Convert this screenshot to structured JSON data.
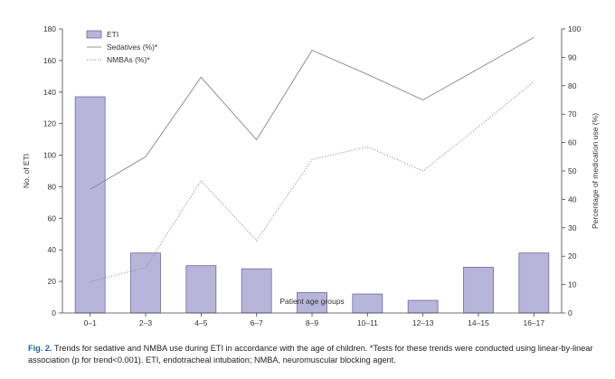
{
  "chart_data": {
    "type": "bar",
    "categories": [
      "0–1",
      "2–3",
      "4–5",
      "6–7",
      "8–9",
      "10–11",
      "12–13",
      "14–15",
      "16–17"
    ],
    "xlabel": "Patient age groups",
    "ylabel": "No. of ETI",
    "y2label": "Percentage of medication use (%)",
    "ylim": [
      0,
      180
    ],
    "y2lim": [
      0,
      100
    ],
    "yticks": [
      "0",
      "20",
      "40",
      "60",
      "80",
      "100",
      "120",
      "140",
      "160",
      "180"
    ],
    "y2ticks": [
      "0",
      "10",
      "20",
      "30",
      "40",
      "50",
      "60",
      "70",
      "80",
      "90",
      "100"
    ],
    "grid": false,
    "legend_position": "top-left",
    "series": [
      {
        "name": "ETI",
        "kind": "bar",
        "axis": "left",
        "color": "#b8b5da",
        "values": [
          137,
          38,
          30,
          28,
          13,
          12,
          8,
          29,
          38
        ]
      },
      {
        "name": "Sedatives (%)*",
        "kind": "line",
        "axis": "right",
        "style": "solid",
        "color": "#888888",
        "values": [
          43.5,
          55,
          83,
          61,
          92.5,
          84,
          75,
          86,
          97
        ]
      },
      {
        "name": "NMBAs (%)*",
        "kind": "line",
        "axis": "right",
        "style": "dotted",
        "color": "#888888",
        "values": [
          11,
          16,
          46.5,
          25.5,
          54,
          58.5,
          50,
          65.5,
          81.5
        ]
      }
    ]
  },
  "caption": {
    "label": "Fig. 2.",
    "text": " Trends for sedative and NMBA use during ETI in accordance with the age of children. *Tests for these trends were conducted using linear-by-linear association (p for trend<0.001). ETI, endotracheal intubation; NMBA, neuromuscular blocking agent."
  }
}
